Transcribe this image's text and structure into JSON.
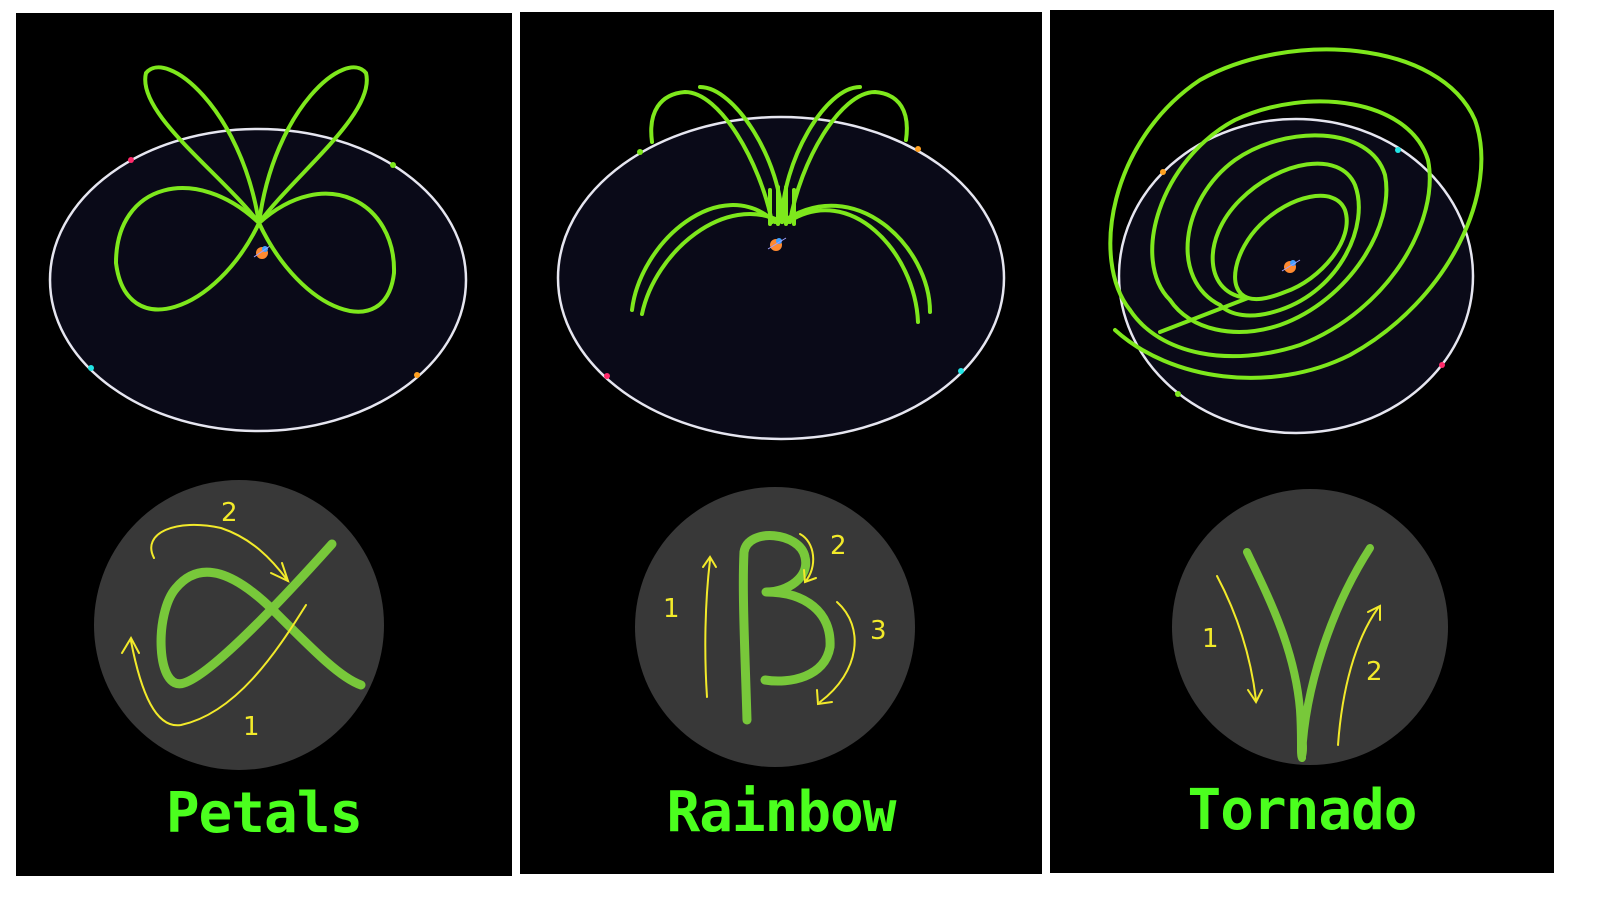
{
  "panels": [
    {
      "name": "Petals",
      "icon": "alpha-gesture-icon",
      "step_labels": [
        "2",
        "1"
      ]
    },
    {
      "name": "Rainbow",
      "icon": "beta-gesture-icon",
      "step_labels": [
        "1",
        "2",
        "3"
      ]
    },
    {
      "name": "Tornado",
      "icon": "gamma-gesture-icon",
      "step_labels": [
        "1",
        "2"
      ]
    }
  ],
  "colors": {
    "background": "#000000",
    "arena": "#0a0a18",
    "arena_rim": "#e6e6f0",
    "path": "#7ee81c",
    "gesture_stroke": "#78c83a",
    "gesture_disc": "#383838",
    "annotation": "#f2ea2a",
    "label": "#4bff1e"
  }
}
